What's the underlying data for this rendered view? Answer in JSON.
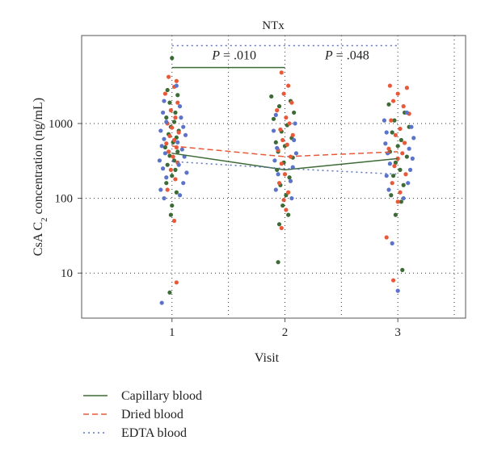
{
  "chart_data": {
    "type": "scatter",
    "title": "NTx",
    "xlabel": "Visit",
    "ylabel": "CsA C2 concentration (ng/mL)",
    "ylabel_parts": {
      "pre": "CsA C",
      "sub": "2",
      "post": " concentration (ng/mL)"
    },
    "yscale": "log",
    "ylim": [
      2.5,
      15000
    ],
    "xlim": [
      0.2,
      3.6
    ],
    "x_ticks": [
      1,
      2,
      3
    ],
    "x_tick_labels": [
      "1",
      "2",
      "3"
    ],
    "y_ticks": [
      10,
      100,
      1000
    ],
    "y_tick_labels": [
      "10",
      "100",
      "1000"
    ],
    "grid": "dotted",
    "legend_position": "below",
    "annotations": [
      {
        "p_label": "P",
        "text": " = .010",
        "x": 1.55,
        "y": 7200
      },
      {
        "p_label": "P",
        "text": " = .048",
        "x": 2.55,
        "y": 7200
      }
    ],
    "brackets": [
      {
        "series": "Capillary blood",
        "x": [
          1,
          2
        ],
        "y": 5600
      },
      {
        "series": "EDTA blood",
        "x": [
          1,
          3
        ],
        "y": 11000
      }
    ],
    "series": [
      {
        "name": "Capillary blood",
        "color": "#3d6b35",
        "dash": "",
        "line": {
          "x": [
            1,
            2,
            3
          ],
          "y": [
            400,
            240,
            340
          ]
        },
        "points": [
          [
            1.0,
            7500
          ],
          [
            0.96,
            2800
          ],
          [
            1.05,
            2400
          ],
          [
            0.98,
            1900
          ],
          [
            1.03,
            1400
          ],
          [
            0.95,
            1200
          ],
          [
            1.02,
            1050
          ],
          [
            0.99,
            900
          ],
          [
            1.06,
            800
          ],
          [
            0.97,
            720
          ],
          [
            1.04,
            650
          ],
          [
            1.01,
            560
          ],
          [
            0.94,
            480
          ],
          [
            1.05,
            420
          ],
          [
            0.98,
            370
          ],
          [
            1.02,
            320
          ],
          [
            0.96,
            280
          ],
          [
            1.03,
            240
          ],
          [
            1.0,
            200
          ],
          [
            0.95,
            160
          ],
          [
            1.04,
            120
          ],
          [
            1.0,
            80
          ],
          [
            0.99,
            60
          ],
          [
            0.98,
            5.5
          ],
          [
            1.88,
            2300
          ],
          [
            2.05,
            2000
          ],
          [
            1.95,
            1700
          ],
          [
            2.08,
            1400
          ],
          [
            1.9,
            1150
          ],
          [
            2.02,
            950
          ],
          [
            1.97,
            780
          ],
          [
            2.06,
            640
          ],
          [
            1.92,
            560
          ],
          [
            2.0,
            500
          ],
          [
            1.94,
            420
          ],
          [
            2.07,
            350
          ],
          [
            1.99,
            300
          ],
          [
            1.93,
            240
          ],
          [
            2.04,
            190
          ],
          [
            1.96,
            150
          ],
          [
            2.01,
            110
          ],
          [
            1.98,
            80
          ],
          [
            2.03,
            60
          ],
          [
            1.95,
            45
          ],
          [
            1.94,
            14
          ],
          [
            2.92,
            1800
          ],
          [
            3.06,
            1400
          ],
          [
            2.97,
            1100
          ],
          [
            3.1,
            900
          ],
          [
            2.95,
            760
          ],
          [
            3.03,
            600
          ],
          [
            3.0,
            500
          ],
          [
            2.93,
            420
          ],
          [
            3.08,
            360
          ],
          [
            2.98,
            300
          ],
          [
            3.02,
            240
          ],
          [
            2.96,
            200
          ],
          [
            3.05,
            150
          ],
          [
            2.94,
            110
          ],
          [
            3.03,
            90
          ],
          [
            2.98,
            60
          ],
          [
            3.04,
            11
          ]
        ]
      },
      {
        "name": "Dried blood",
        "color": "#e8593a",
        "dash": "7,4",
        "line": {
          "x": [
            1,
            2,
            3
          ],
          "y": [
            500,
            360,
            420
          ]
        },
        "points": [
          [
            0.97,
            4200
          ],
          [
            1.04,
            3700
          ],
          [
            1.02,
            3100
          ],
          [
            0.94,
            2500
          ],
          [
            1.05,
            1900
          ],
          [
            0.99,
            1500
          ],
          [
            1.03,
            1200
          ],
          [
            0.96,
            1000
          ],
          [
            1.0,
            880
          ],
          [
            1.06,
            760
          ],
          [
            0.98,
            680
          ],
          [
            1.02,
            600
          ],
          [
            0.95,
            540
          ],
          [
            1.04,
            480
          ],
          [
            0.97,
            420
          ],
          [
            1.01,
            360
          ],
          [
            1.05,
            300
          ],
          [
            0.99,
            240
          ],
          [
            1.03,
            180
          ],
          [
            0.96,
            130
          ],
          [
            1.02,
            50
          ],
          [
            1.04,
            7.5
          ],
          [
            1.97,
            4800
          ],
          [
            2.03,
            3200
          ],
          [
            1.99,
            2500
          ],
          [
            2.06,
            1900
          ],
          [
            1.93,
            1500
          ],
          [
            2.01,
            1200
          ],
          [
            2.04,
            1000
          ],
          [
            1.96,
            830
          ],
          [
            2.07,
            700
          ],
          [
            1.98,
            600
          ],
          [
            2.02,
            520
          ],
          [
            1.94,
            440
          ],
          [
            2.05,
            360
          ],
          [
            1.97,
            290
          ],
          [
            2.0,
            210
          ],
          [
            1.95,
            160
          ],
          [
            2.03,
            120
          ],
          [
            1.99,
            95
          ],
          [
            2.01,
            70
          ],
          [
            1.97,
            40
          ],
          [
            2.93,
            3200
          ],
          [
            3.08,
            3000
          ],
          [
            3.0,
            2500
          ],
          [
            2.96,
            2000
          ],
          [
            3.05,
            1700
          ],
          [
            3.1,
            1350
          ],
          [
            2.94,
            1100
          ],
          [
            3.02,
            850
          ],
          [
            2.98,
            700
          ],
          [
            3.06,
            550
          ],
          [
            2.92,
            460
          ],
          [
            3.04,
            400
          ],
          [
            3.0,
            340
          ],
          [
            2.97,
            270
          ],
          [
            3.07,
            210
          ],
          [
            2.95,
            160
          ],
          [
            3.02,
            120
          ],
          [
            3.0,
            90
          ],
          [
            2.9,
            30
          ],
          [
            2.96,
            8
          ]
        ]
      },
      {
        "name": "EDTA blood",
        "color": "#5b74c9",
        "dash": "2,4",
        "line": {
          "x": [
            1,
            2,
            3
          ],
          "y": [
            310,
            250,
            210
          ]
        },
        "points": [
          [
            1.04,
            3200
          ],
          [
            0.93,
            2000
          ],
          [
            1.07,
            1700
          ],
          [
            0.92,
            1400
          ],
          [
            1.08,
            1200
          ],
          [
            0.95,
            1050
          ],
          [
            1.1,
            900
          ],
          [
            0.9,
            800
          ],
          [
            1.12,
            700
          ],
          [
            0.93,
            620
          ],
          [
            1.05,
            560
          ],
          [
            0.91,
            500
          ],
          [
            1.09,
            450
          ],
          [
            0.94,
            400
          ],
          [
            1.11,
            360
          ],
          [
            0.89,
            320
          ],
          [
            1.06,
            280
          ],
          [
            0.92,
            250
          ],
          [
            1.13,
            220
          ],
          [
            0.95,
            190
          ],
          [
            1.1,
            160
          ],
          [
            0.9,
            130
          ],
          [
            1.07,
            110
          ],
          [
            0.93,
            100
          ],
          [
            0.91,
            4
          ],
          [
            1.92,
            1300
          ],
          [
            2.09,
            1000
          ],
          [
            1.9,
            800
          ],
          [
            2.08,
            600
          ],
          [
            1.93,
            470
          ],
          [
            2.1,
            400
          ],
          [
            1.91,
            320
          ],
          [
            2.07,
            260
          ],
          [
            1.94,
            210
          ],
          [
            2.05,
            170
          ],
          [
            1.92,
            130
          ],
          [
            2.06,
            100
          ],
          [
            3.08,
            1400
          ],
          [
            2.88,
            1100
          ],
          [
            3.12,
            900
          ],
          [
            2.9,
            760
          ],
          [
            3.14,
            640
          ],
          [
            2.89,
            540
          ],
          [
            3.1,
            460
          ],
          [
            2.91,
            400
          ],
          [
            3.13,
            340
          ],
          [
            2.93,
            290
          ],
          [
            3.11,
            240
          ],
          [
            2.9,
            200
          ],
          [
            3.09,
            160
          ],
          [
            2.92,
            130
          ],
          [
            3.05,
            100
          ],
          [
            2.95,
            25
          ],
          [
            3.0,
            5.8
          ]
        ]
      }
    ]
  }
}
